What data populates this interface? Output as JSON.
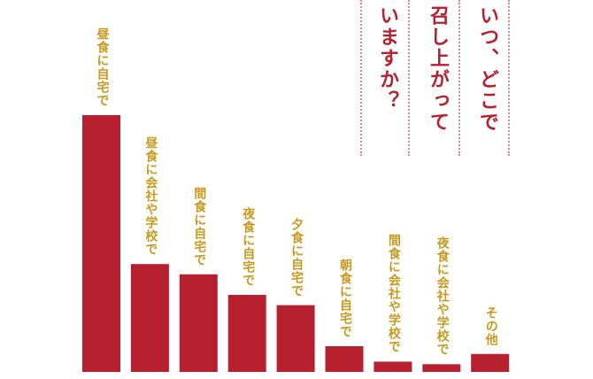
{
  "chart_data": {
    "type": "bar",
    "title_lines": [
      "いつ、どこで",
      "召し上がって",
      "いますか？"
    ],
    "categories": [
      "昼食に自宅で",
      "昼食に会社や学校で",
      "間食に自宅で",
      "夜食に自宅で",
      "夕食に自宅で",
      "朝食に自宅で",
      "間食に会社や学校で",
      "夜食に会社や学校で",
      "その他"
    ],
    "values": [
      100,
      42,
      38,
      30,
      26,
      10,
      4,
      3,
      7
    ],
    "ylim": [
      0,
      100
    ],
    "grid": false,
    "legend": "none"
  },
  "colors": {
    "bar": "#b7212f",
    "label": "#c99a1e",
    "title": "#b7212f",
    "divider": "#e08c8c"
  }
}
